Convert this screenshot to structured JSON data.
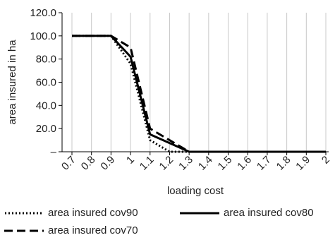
{
  "chart_data": {
    "type": "line",
    "title": "",
    "xlabel": "loading cost",
    "ylabel": "area insured in ha",
    "categories": [
      "0.7",
      "0.8",
      "0.9",
      "1",
      "1.1",
      "1.2",
      "1.3",
      "1.4",
      "1.5",
      "1.6",
      "1.7",
      "1.8",
      "1.9",
      "2"
    ],
    "y_ticks": [
      "–",
      "20.0",
      "40.0",
      "60.0",
      "80.0",
      "100.0",
      "120.0"
    ],
    "ylim": [
      0,
      120
    ],
    "grid": "vertical",
    "legend_position": "bottom",
    "series": [
      {
        "name": "area insured cov90",
        "style": "dotted",
        "color": "#000000",
        "points": [
          [
            0.7,
            100
          ],
          [
            0.9,
            100
          ],
          [
            1.0,
            76
          ],
          [
            1.1,
            10
          ],
          [
            1.2,
            0
          ],
          [
            1.3,
            0
          ],
          [
            2.0,
            0
          ]
        ]
      },
      {
        "name": "area insured cov80",
        "style": "solid",
        "color": "#000000",
        "points": [
          [
            0.7,
            100
          ],
          [
            0.9,
            100
          ],
          [
            1.0,
            82
          ],
          [
            1.1,
            15
          ],
          [
            1.3,
            0
          ],
          [
            2.0,
            0
          ]
        ]
      },
      {
        "name": "area insured cov70",
        "style": "dashed",
        "color": "#000000",
        "points": [
          [
            0.7,
            100
          ],
          [
            0.9,
            100
          ],
          [
            1.0,
            90
          ],
          [
            1.1,
            20
          ],
          [
            1.3,
            0
          ],
          [
            2.0,
            0
          ]
        ]
      }
    ]
  }
}
